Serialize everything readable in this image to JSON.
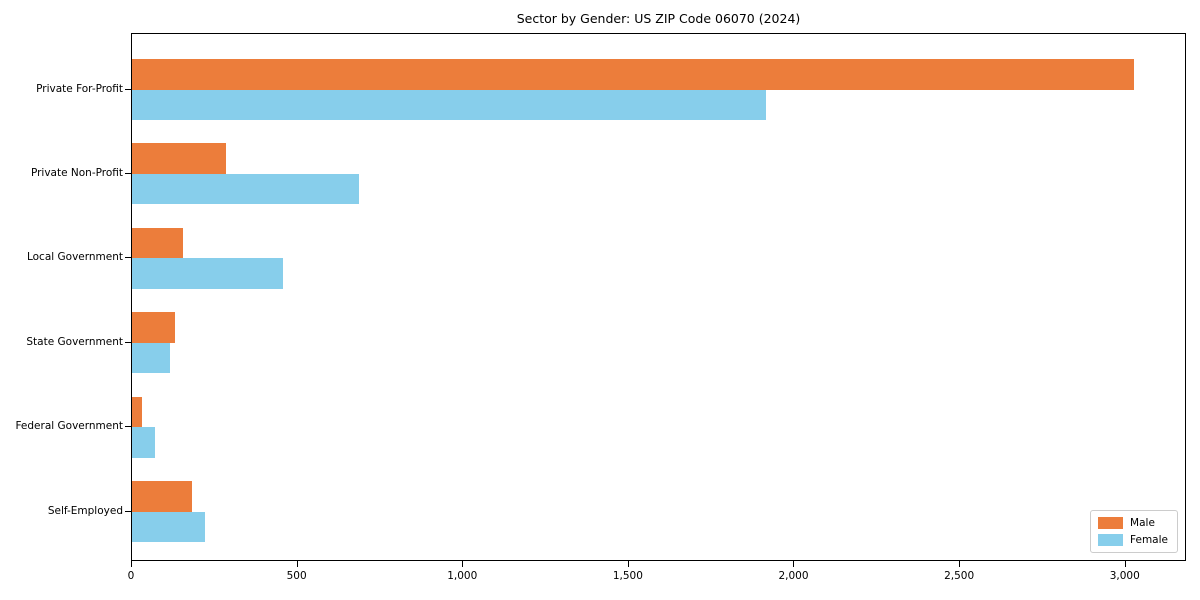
{
  "chart_data": {
    "type": "bar",
    "orientation": "horizontal",
    "title": "Sector by Gender: US ZIP Code 06070 (2024)",
    "categories": [
      "Private For-Profit",
      "Private Non-Profit",
      "Local Government",
      "State Government",
      "Federal Government",
      "Self-Employed"
    ],
    "series": [
      {
        "name": "Male",
        "color": "#EC7D3B",
        "values": [
          3025,
          285,
          155,
          130,
          30,
          180
        ]
      },
      {
        "name": "Female",
        "color": "#87CEEB",
        "values": [
          1915,
          685,
          455,
          115,
          70,
          220
        ]
      }
    ],
    "xlabel": "",
    "ylabel": "",
    "xlim": [
      0,
      3185
    ],
    "xticks": {
      "values": [
        0,
        500,
        1000,
        1500,
        2000,
        2500,
        3000
      ],
      "labels": [
        "0",
        "500",
        "1,000",
        "1,500",
        "2,000",
        "2,500",
        "3,000"
      ]
    },
    "legend": {
      "position": "lower right",
      "entries": [
        "Male",
        "Female"
      ]
    },
    "grid": false,
    "colors": {
      "male": "#EC7D3B",
      "female": "#87CEEB",
      "frame": "#000000",
      "legend_border": "#cccccc"
    }
  }
}
